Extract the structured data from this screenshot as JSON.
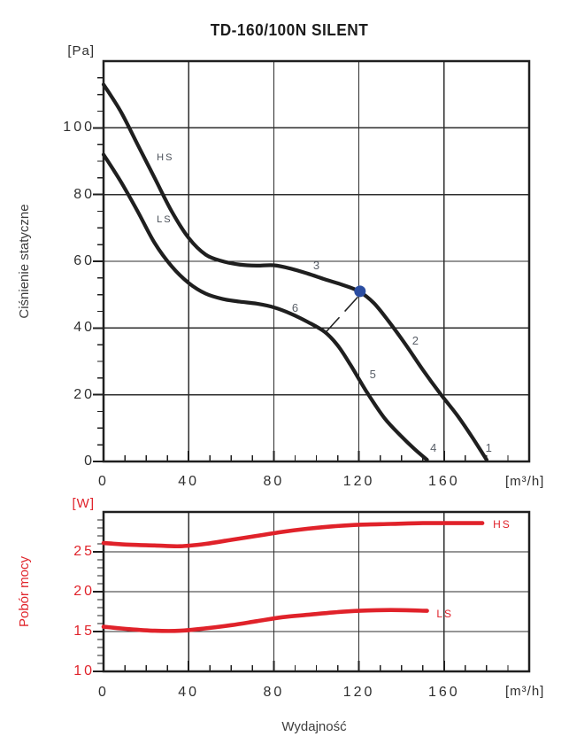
{
  "title": "TD-160/100N SILENT",
  "xlabel": "Wydajność",
  "colors": {
    "ink": "#1f1f1f",
    "grid": "#2d2d2d",
    "accent_red": "#e0222a",
    "marker_blue": "#2b4da1"
  },
  "chart_data": [
    {
      "id": "pressure",
      "type": "line",
      "title": "TD-160/100N SILENT",
      "ylabel": "Ciśnienie statyczne",
      "y_unit": "[Pa]",
      "x_unit": "[m³/h]",
      "xlim": [
        0,
        200
      ],
      "ylim": [
        0,
        120
      ],
      "x_major": 40,
      "x_minor": 10,
      "y_major": 20,
      "y_minor": 5,
      "grid": true,
      "legend_position": "on-curve",
      "x_tick_values": [
        0,
        40,
        80,
        120,
        160
      ],
      "x_tick_labels": [
        "0",
        "40",
        "80",
        "120",
        "160"
      ],
      "y_tick_values": [
        0,
        20,
        40,
        60,
        80,
        100
      ],
      "y_tick_labels": [
        "0",
        "20",
        "40",
        "60",
        "80",
        "100"
      ],
      "series": [
        {
          "name": "HS",
          "label": "HS",
          "label_pos": [
            25,
            91
          ],
          "color": "#1f1f1f",
          "points": [
            [
              0,
              113
            ],
            [
              8,
              105
            ],
            [
              16,
              95
            ],
            [
              24,
              85
            ],
            [
              32,
              75
            ],
            [
              40,
              67
            ],
            [
              48,
              62
            ],
            [
              56,
              60
            ],
            [
              64,
              59
            ],
            [
              72,
              58.7
            ],
            [
              80,
              58.8
            ],
            [
              88,
              57.8
            ],
            [
              96,
              56.3
            ],
            [
              104,
              54.6
            ],
            [
              112,
              53
            ],
            [
              120,
              51
            ],
            [
              127,
              47.5
            ],
            [
              134,
              42
            ],
            [
              142,
              35
            ],
            [
              150,
              27.5
            ],
            [
              158,
              20.5
            ],
            [
              166,
              14
            ],
            [
              173,
              7.5
            ],
            [
              180,
              0.5
            ]
          ]
        },
        {
          "name": "LS",
          "label": "LS",
          "label_pos": [
            25,
            72.5
          ],
          "color": "#1f1f1f",
          "points": [
            [
              0,
              92
            ],
            [
              8,
              84
            ],
            [
              16,
              75
            ],
            [
              24,
              65.5
            ],
            [
              32,
              58.5
            ],
            [
              40,
              53.5
            ],
            [
              48,
              50.3
            ],
            [
              56,
              48.7
            ],
            [
              64,
              47.9
            ],
            [
              72,
              47.3
            ],
            [
              80,
              46.2
            ],
            [
              88,
              44.3
            ],
            [
              96,
              41.8
            ],
            [
              104,
              38.8
            ],
            [
              110,
              34.8
            ],
            [
              116,
              29
            ],
            [
              124,
              20.5
            ],
            [
              132,
              13
            ],
            [
              140,
              7.5
            ],
            [
              146,
              3.8
            ],
            [
              152,
              0.5
            ]
          ]
        }
      ],
      "point_labels": [
        {
          "text": "1",
          "pos": [
            181,
            4
          ]
        },
        {
          "text": "2",
          "pos": [
            146.5,
            36
          ]
        },
        {
          "text": "3",
          "pos": [
            100,
            58.7
          ]
        },
        {
          "text": "4",
          "pos": [
            155,
            4
          ]
        },
        {
          "text": "5",
          "pos": [
            126.5,
            26
          ]
        },
        {
          "text": "6",
          "pos": [
            90,
            46
          ]
        }
      ],
      "marker": {
        "pos": [
          120.5,
          51
        ],
        "radius": 6.5,
        "color": "#2b4da1"
      },
      "connector": {
        "from": [
          119.5,
          49.3
        ],
        "to": [
          104.5,
          38.8
        ],
        "dash": "22 9"
      }
    },
    {
      "id": "power",
      "type": "line",
      "ylabel": "Pobór mocy",
      "y_unit": "[W]",
      "x_unit": "[m³/h]",
      "xlabel": "Wydajność",
      "xlim": [
        0,
        200
      ],
      "ylim": [
        10,
        30
      ],
      "x_major": 40,
      "x_minor": 10,
      "y_major": 5,
      "y_minor": 1,
      "grid": true,
      "x_tick_values": [
        0,
        40,
        80,
        120,
        160
      ],
      "x_tick_labels": [
        "0",
        "40",
        "80",
        "120",
        "160"
      ],
      "y_tick_values": [
        10,
        15,
        20,
        25
      ],
      "y_tick_labels": [
        "10",
        "15",
        "20",
        "25"
      ],
      "series": [
        {
          "name": "HS",
          "label": "HS",
          "label_pos": [
            183,
            28.4
          ],
          "color": "#e0222a",
          "points": [
            [
              0,
              26.1
            ],
            [
              12,
              25.9
            ],
            [
              24,
              25.8
            ],
            [
              36,
              25.7
            ],
            [
              48,
              26
            ],
            [
              60,
              26.5
            ],
            [
              72,
              27
            ],
            [
              84,
              27.5
            ],
            [
              96,
              27.9
            ],
            [
              108,
              28.2
            ],
            [
              120,
              28.4
            ],
            [
              135,
              28.5
            ],
            [
              150,
              28.6
            ],
            [
              165,
              28.6
            ],
            [
              178,
              28.6
            ]
          ]
        },
        {
          "name": "LS",
          "label": "LS",
          "label_pos": [
            156.5,
            17.25
          ],
          "color": "#e0222a",
          "points": [
            [
              0,
              15.6
            ],
            [
              12,
              15.3
            ],
            [
              24,
              15.1
            ],
            [
              36,
              15.1
            ],
            [
              48,
              15.4
            ],
            [
              60,
              15.8
            ],
            [
              72,
              16.3
            ],
            [
              84,
              16.8
            ],
            [
              96,
              17.1
            ],
            [
              108,
              17.4
            ],
            [
              120,
              17.6
            ],
            [
              135,
              17.7
            ],
            [
              152,
              17.6
            ]
          ]
        }
      ]
    }
  ]
}
